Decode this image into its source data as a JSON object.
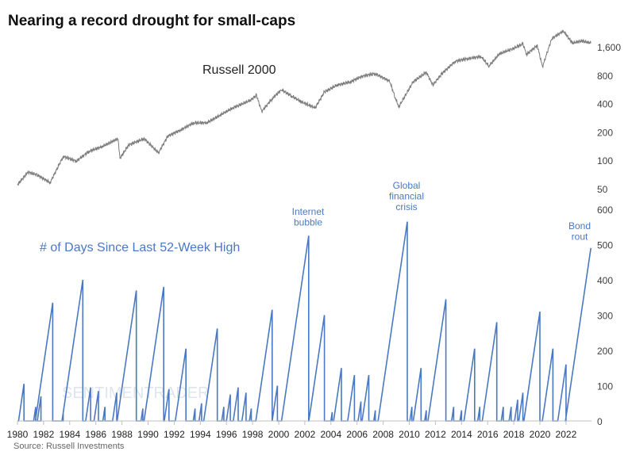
{
  "title": "Nearing a record drought for small-caps",
  "source": "Source: Russell Investments",
  "watermark": "SENTIMENTRADER",
  "colors": {
    "index": "#7a7a7a",
    "days": "#4a78c2",
    "annotation": "#4a78c2",
    "axis": "#bfbfbf",
    "text": "#404040"
  },
  "chart_data": [
    {
      "type": "line",
      "title": "Russell 2000",
      "yscale": "log",
      "ylim": [
        40,
        2600
      ],
      "yticks": [
        "50",
        "100",
        "200",
        "400",
        "800",
        "1,600"
      ],
      "ytick_values": [
        50,
        100,
        200,
        400,
        800,
        1600
      ],
      "x": [
        1980,
        1980.8,
        1981.5,
        1982.5,
        1983.5,
        1984.5,
        1985.5,
        1986.5,
        1987.7,
        1987.85,
        1988.5,
        1989.7,
        1990.8,
        1991.5,
        1992.5,
        1993.5,
        1994.5,
        1995.5,
        1996.5,
        1997.8,
        1998.3,
        1998.7,
        1999.5,
        2000.2,
        2001.0,
        2001.7,
        2002.8,
        2003.5,
        2004.5,
        2005.5,
        2006.4,
        2007.4,
        2008.5,
        2008.9,
        2009.2,
        2010.3,
        2011.3,
        2011.8,
        2012.5,
        2013.5,
        2014.5,
        2015.5,
        2016.1,
        2016.9,
        2017.8,
        2018.7,
        2018.98,
        2019.8,
        2020.2,
        2020.9,
        2021.8,
        2022.5,
        2023.2,
        2023.9
      ],
      "values": [
        55,
        75,
        70,
        58,
        110,
        98,
        125,
        140,
        170,
        105,
        145,
        170,
        120,
        180,
        210,
        250,
        250,
        300,
        360,
        430,
        490,
        330,
        450,
        560,
        480,
        420,
        360,
        530,
        630,
        680,
        780,
        830,
        690,
        470,
        370,
        680,
        860,
        630,
        830,
        1120,
        1200,
        1260,
        1000,
        1350,
        1500,
        1720,
        1330,
        1650,
        980,
        1950,
        2350,
        1750,
        1850,
        1750
      ]
    },
    {
      "type": "line",
      "title": "# of Days Since Last 52-Week High",
      "ylim": [
        0,
        600
      ],
      "yticks": [
        "0",
        "100",
        "200",
        "300",
        "400",
        "500",
        "600"
      ],
      "ytick_values": [
        0,
        100,
        200,
        300,
        400,
        500,
        600
      ],
      "xlim": [
        1980,
        2024
      ],
      "xticks": [
        "1980",
        "1982",
        "1984",
        "1986",
        "1988",
        "1990",
        "1992",
        "1994",
        "1996",
        "1998",
        "2000",
        "2002",
        "2004",
        "2006",
        "2008",
        "2010",
        "2012",
        "2014",
        "2016",
        "2018",
        "2020",
        "2022"
      ],
      "note": "sawtooth: each peak is [year of new high, days elapsed at that point]",
      "peaks": [
        [
          1980.5,
          105
        ],
        [
          1981.4,
          40
        ],
        [
          1981.8,
          70
        ],
        [
          1982.7,
          335
        ],
        [
          1983.5,
          20
        ],
        [
          1985.0,
          400
        ],
        [
          1985.6,
          95
        ],
        [
          1986.2,
          85
        ],
        [
          1986.7,
          40
        ],
        [
          1987.6,
          80
        ],
        [
          1989.1,
          370
        ],
        [
          1989.6,
          35
        ],
        [
          1991.2,
          380
        ],
        [
          1991.6,
          90
        ],
        [
          1992.9,
          205
        ],
        [
          1993.6,
          35
        ],
        [
          1994.1,
          50
        ],
        [
          1995.3,
          262
        ],
        [
          1995.8,
          40
        ],
        [
          1996.3,
          75
        ],
        [
          1996.9,
          95
        ],
        [
          1997.5,
          80
        ],
        [
          1997.9,
          35
        ],
        [
          1999.5,
          315
        ],
        [
          1999.9,
          100
        ],
        [
          2002.3,
          525
        ],
        [
          2003.5,
          300
        ],
        [
          2004.1,
          25
        ],
        [
          2004.8,
          150
        ],
        [
          2005.8,
          130
        ],
        [
          2006.3,
          55
        ],
        [
          2006.9,
          130
        ],
        [
          2007.4,
          30
        ],
        [
          2009.85,
          565
        ],
        [
          2010.2,
          40
        ],
        [
          2010.9,
          150
        ],
        [
          2011.3,
          30
        ],
        [
          2012.8,
          345
        ],
        [
          2013.4,
          40
        ],
        [
          2014.0,
          30
        ],
        [
          2015.0,
          205
        ],
        [
          2015.4,
          40
        ],
        [
          2016.7,
          280
        ],
        [
          2017.2,
          40
        ],
        [
          2017.8,
          40
        ],
        [
          2018.3,
          60
        ],
        [
          2018.7,
          80
        ],
        [
          2020.0,
          310
        ],
        [
          2021.0,
          205
        ],
        [
          2022.0,
          160
        ],
        [
          2023.9,
          490
        ]
      ],
      "annotations": [
        {
          "lines": [
            "Internet",
            "bubble"
          ],
          "year": 2002.3
        },
        {
          "lines": [
            "Global",
            "financial",
            "crisis"
          ],
          "year": 2009.85
        },
        {
          "lines": [
            "Bond",
            "rout"
          ],
          "year": 2023.9
        }
      ]
    }
  ]
}
